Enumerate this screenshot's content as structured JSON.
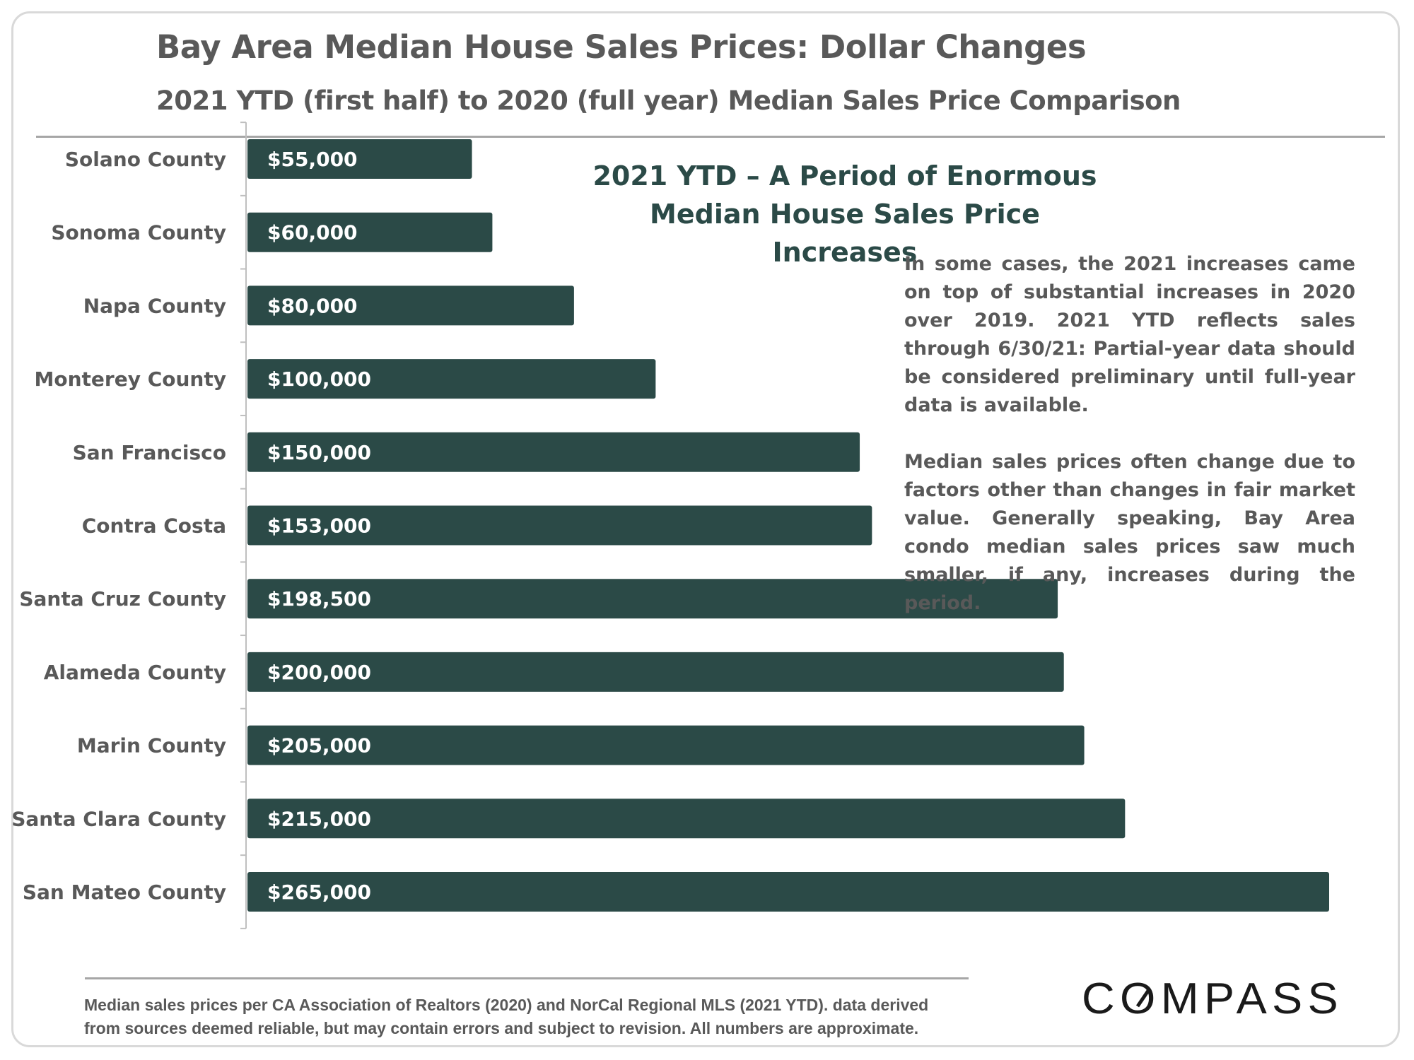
{
  "title": "Bay Area Median House Sales Prices: Dollar Changes",
  "subtitle": "2021 YTD (first half) to 2020 (full year) Median Sales Price Comparison",
  "headline": {
    "line1": "2021 YTD – A Period of Enormous",
    "line2": "Median House Sales Price Increases"
  },
  "notes": {
    "paragraph1": "In some cases, the 2021 increases came on top of substantial increases in 2020 over 2019. 2021 YTD reflects sales through 6/30/21: Partial-year data should be considered preliminary until full-year data is available.",
    "paragraph2": "Median sales prices often change due to factors other than changes in fair market value. Generally speaking, Bay Area condo median sales prices saw much smaller, if any, increases during the period."
  },
  "footnote": {
    "line1": "Median sales prices per CA Association of Realtors (2020) and NorCal Regional MLS (2021 YTD). data derived",
    "line2": "from sources deemed reliable, but may contain errors and subject to revision.  All numbers are approximate."
  },
  "logo": {
    "text": "COMPASS"
  },
  "colors": {
    "bar": "#2b4a47",
    "bar_label": "#ffffff",
    "category_text": "#595959",
    "axis": "#bfbfbf",
    "headline": "#2b4a47"
  },
  "chart_data": {
    "type": "bar",
    "orientation": "horizontal",
    "categories": [
      "Solano County",
      "Sonoma County",
      "Napa County",
      "Monterey County",
      "San Francisco",
      "Contra Costa",
      "Santa Cruz County",
      "Alameda County",
      "Marin County",
      "Santa Clara County",
      "San Mateo County"
    ],
    "values": [
      55000,
      60000,
      80000,
      100000,
      150000,
      153000,
      198500,
      200000,
      205000,
      215000,
      265000
    ],
    "data_labels": [
      "$55,000",
      "$60,000",
      "$80,000",
      "$100,000",
      "$150,000",
      "$153,000",
      "$198,500",
      "$200,000",
      "$205,000",
      "$215,000",
      "$265,000"
    ],
    "xlim": [
      0,
      265000
    ],
    "grid": false,
    "legend": "none"
  }
}
